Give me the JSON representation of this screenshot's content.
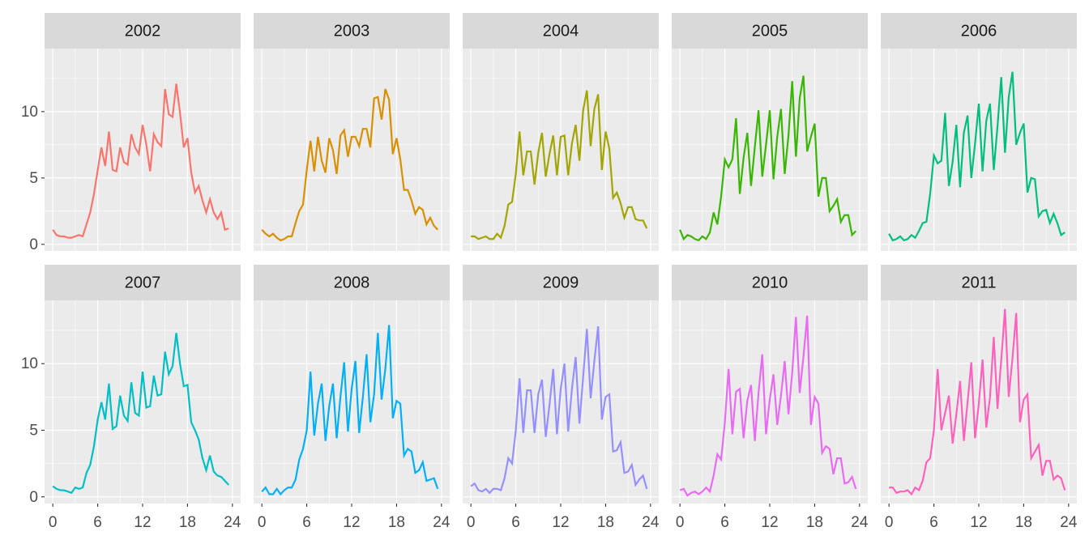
{
  "chart_data": {
    "type": "line",
    "x": [
      0,
      0.5,
      1,
      1.5,
      2,
      2.5,
      3,
      3.5,
      4,
      4.5,
      5,
      5.5,
      6,
      6.5,
      7,
      7.5,
      8,
      8.5,
      9,
      9.5,
      10,
      10.5,
      11,
      11.5,
      12,
      12.5,
      13,
      13.5,
      14,
      14.5,
      15,
      15.5,
      16,
      16.5,
      17,
      17.5,
      18,
      18.5,
      19,
      19.5,
      20,
      20.5,
      21,
      21.5,
      22,
      22.5,
      23,
      23.5
    ],
    "series": [
      {
        "name": "2002",
        "color": "#F8766D",
        "values": [
          1.1,
          0.7,
          0.6,
          0.6,
          0.5,
          0.5,
          0.6,
          0.7,
          0.6,
          1.5,
          2.4,
          3.8,
          5.6,
          7.3,
          5.9,
          8.5,
          5.6,
          5.5,
          7.3,
          6.2,
          6.0,
          8.3,
          7.3,
          6.8,
          9.0,
          7.5,
          5.5,
          8.3,
          7.7,
          7.4,
          11.7,
          9.8,
          9.6,
          12.1,
          9.9,
          7.3,
          8.0,
          5.4,
          3.9,
          4.4,
          3.3,
          2.4,
          3.4,
          2.4,
          1.9,
          2.4,
          1.1,
          1.2
        ]
      },
      {
        "name": "2003",
        "color": "#D89000",
        "values": [
          1.1,
          0.8,
          0.6,
          0.8,
          0.5,
          0.3,
          0.4,
          0.6,
          0.6,
          1.6,
          2.5,
          3.0,
          5.6,
          7.8,
          5.5,
          8.1,
          6.3,
          5.4,
          8.0,
          7.1,
          5.3,
          8.2,
          8.6,
          6.6,
          8.1,
          8.1,
          7.4,
          8.7,
          8.7,
          7.3,
          11.0,
          11.1,
          9.4,
          11.7,
          10.9,
          6.8,
          8.0,
          6.4,
          4.1,
          4.1,
          3.3,
          2.3,
          2.8,
          2.6,
          1.5,
          2.0,
          1.4,
          1.1
        ]
      },
      {
        "name": "2004",
        "color": "#A3A500",
        "values": [
          0.6,
          0.6,
          0.4,
          0.5,
          0.6,
          0.4,
          0.4,
          0.8,
          0.5,
          1.4,
          3.0,
          3.2,
          5.3,
          8.5,
          5.2,
          7.0,
          7.0,
          4.5,
          6.9,
          8.4,
          5.1,
          6.8,
          8.2,
          5.2,
          8.1,
          8.2,
          5.2,
          7.6,
          9.0,
          6.3,
          10.1,
          11.6,
          7.4,
          10.2,
          11.3,
          5.6,
          8.5,
          7.2,
          3.5,
          3.9,
          3.1,
          2.0,
          2.8,
          2.8,
          1.9,
          1.8,
          1.8,
          1.2
        ]
      },
      {
        "name": "2005",
        "color": "#39B600",
        "values": [
          1.1,
          0.4,
          0.7,
          0.6,
          0.4,
          0.3,
          0.6,
          0.4,
          0.9,
          2.4,
          1.5,
          3.6,
          6.4,
          5.8,
          6.4,
          9.5,
          3.8,
          6.5,
          8.4,
          4.4,
          7.3,
          10.1,
          5.1,
          7.5,
          10.1,
          4.9,
          8.1,
          10.2,
          5.3,
          8.2,
          12.3,
          6.6,
          11.0,
          12.7,
          7.0,
          8.1,
          9.1,
          3.6,
          5.0,
          5.0,
          2.5,
          2.9,
          3.4,
          1.7,
          2.2,
          2.2,
          0.7,
          1.0
        ]
      },
      {
        "name": "2006",
        "color": "#00BF7D",
        "values": [
          0.8,
          0.3,
          0.4,
          0.6,
          0.3,
          0.4,
          0.7,
          0.5,
          1.0,
          1.6,
          1.7,
          3.8,
          6.7,
          6.1,
          6.3,
          9.9,
          4.4,
          6.2,
          9.0,
          4.3,
          8.4,
          9.7,
          5.0,
          7.6,
          10.6,
          5.5,
          9.3,
          10.6,
          5.6,
          8.9,
          12.6,
          6.9,
          11.1,
          13.0,
          7.5,
          8.4,
          9.1,
          3.9,
          5.0,
          4.9,
          2.1,
          2.5,
          2.6,
          1.6,
          2.3,
          1.6,
          0.7,
          0.9
        ]
      },
      {
        "name": "2007",
        "color": "#00BFC4",
        "values": [
          0.8,
          0.6,
          0.5,
          0.5,
          0.4,
          0.3,
          0.7,
          0.6,
          0.7,
          1.8,
          2.4,
          3.8,
          5.8,
          7.1,
          5.8,
          8.5,
          5.1,
          5.3,
          7.6,
          6.1,
          5.7,
          8.6,
          6.3,
          6.1,
          9.4,
          6.7,
          6.8,
          9.1,
          7.6,
          7.7,
          10.9,
          9.2,
          9.8,
          12.3,
          10.0,
          8.3,
          8.4,
          5.6,
          5.0,
          4.3,
          2.9,
          2.0,
          3.1,
          1.9,
          1.6,
          1.5,
          1.2,
          0.9
        ]
      },
      {
        "name": "2008",
        "color": "#00B0F6",
        "values": [
          0.4,
          0.7,
          0.2,
          0.2,
          0.6,
          0.2,
          0.5,
          0.7,
          0.7,
          1.3,
          2.8,
          3.6,
          5.0,
          9.4,
          4.6,
          7.0,
          8.5,
          4.2,
          6.8,
          8.5,
          4.4,
          7.5,
          10.1,
          4.9,
          8.1,
          10.2,
          4.8,
          7.5,
          10.7,
          5.6,
          7.7,
          12.3,
          7.3,
          9.6,
          12.9,
          5.9,
          7.2,
          7.0,
          3.1,
          3.6,
          3.4,
          1.8,
          2.0,
          2.6,
          1.2,
          1.3,
          1.4,
          0.6
        ]
      },
      {
        "name": "2009",
        "color": "#9590FF",
        "values": [
          0.8,
          1.0,
          0.5,
          0.4,
          0.6,
          0.3,
          0.6,
          0.6,
          0.5,
          1.4,
          2.9,
          2.5,
          5.0,
          8.9,
          4.8,
          8.0,
          8.0,
          4.8,
          7.7,
          8.8,
          4.5,
          6.9,
          9.6,
          4.7,
          8.1,
          10.0,
          4.9,
          8.1,
          10.5,
          5.5,
          9.0,
          12.6,
          7.4,
          10.2,
          12.8,
          5.8,
          7.5,
          7.7,
          3.4,
          3.5,
          4.1,
          1.8,
          1.9,
          2.4,
          0.9,
          1.3,
          1.6,
          0.6
        ]
      },
      {
        "name": "2010",
        "color": "#E76BF3",
        "values": [
          0.5,
          0.6,
          0.1,
          0.3,
          0.4,
          0.2,
          0.4,
          0.7,
          0.4,
          1.6,
          3.2,
          2.8,
          5.6,
          9.6,
          4.7,
          7.9,
          8.1,
          4.4,
          7.2,
          8.4,
          4.2,
          7.8,
          10.7,
          4.7,
          7.3,
          9.2,
          5.4,
          7.6,
          10.2,
          6.2,
          9.3,
          13.5,
          7.8,
          10.5,
          13.6,
          5.4,
          7.5,
          7.0,
          3.3,
          3.8,
          3.6,
          1.7,
          2.9,
          2.9,
          1.0,
          1.1,
          1.5,
          0.6
        ]
      },
      {
        "name": "2011",
        "color": "#FF62BC",
        "values": [
          0.7,
          0.7,
          0.3,
          0.4,
          0.4,
          0.5,
          0.2,
          0.7,
          0.5,
          1.2,
          2.6,
          2.9,
          5.0,
          9.6,
          5.0,
          6.3,
          7.6,
          4.0,
          6.2,
          8.7,
          4.2,
          7.1,
          10.1,
          4.4,
          7.0,
          10.3,
          5.2,
          7.5,
          12.0,
          6.6,
          10.3,
          14.1,
          7.5,
          10.4,
          13.8,
          5.6,
          7.3,
          7.7,
          2.9,
          3.4,
          3.9,
          1.6,
          2.7,
          2.7,
          1.3,
          1.6,
          1.4,
          0.5
        ]
      }
    ],
    "xlim": [
      -1.1,
      25.1
    ],
    "xticks": [
      0,
      6,
      12,
      18,
      24
    ],
    "ylim": [
      -0.5,
      14.75
    ],
    "yticks": [
      0,
      5,
      10
    ],
    "grid": true
  }
}
